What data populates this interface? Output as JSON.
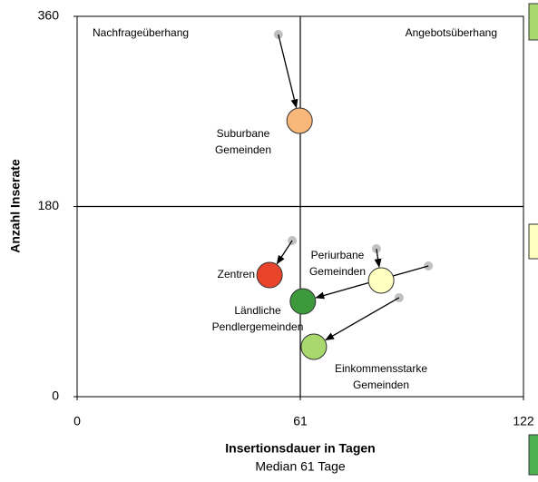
{
  "chart_data": {
    "type": "scatter",
    "quadrant_labels": [
      "Nachfrageüberhang",
      "Angebotsüberhang"
    ],
    "xlabel": "Insertionsdauer in Tagen",
    "subtitle": "Median 61 Tage",
    "ylabel": "Anzahl Inserate",
    "xlim": [
      0,
      122
    ],
    "ylim": [
      0,
      360
    ],
    "xticks": [
      0,
      61,
      122
    ],
    "yticks": [
      0,
      180,
      360
    ],
    "median": {
      "x": 61,
      "y": 180
    },
    "previous_color": "#c0c0c0",
    "points": [
      {
        "label": [
          "Suburbane",
          "Gemeinden"
        ],
        "color": "#f9b77a",
        "from": {
          "x": 55.0,
          "y": 342.8
        },
        "to": {
          "x": 60.8,
          "y": 261.2
        }
      },
      {
        "label": [
          "Zentren"
        ],
        "color": "#e8432b",
        "from": {
          "x": 58.8,
          "y": 147.8
        },
        "to": {
          "x": 52.6,
          "y": 115.1
        }
      },
      {
        "label": [
          "Ländliche",
          "Pendlergemeinden"
        ],
        "color": "#3c9a3c",
        "from": {
          "x": 96.0,
          "y": 123.7
        },
        "to": {
          "x": 61.7,
          "y": 90.2
        }
      },
      {
        "label": [
          "Periurbane",
          "Gemeinden"
        ],
        "color": "#ffffc2",
        "from": {
          "x": 81.8,
          "y": 140.0
        },
        "to": {
          "x": 83.1,
          "y": 110.0
        }
      },
      {
        "label": [
          "Einkommensstarke",
          "Gemeinden"
        ],
        "color": "#a8d86e",
        "from": {
          "x": 88.0,
          "y": 93.7
        },
        "to": {
          "x": 64.7,
          "y": 47.3
        }
      }
    ]
  }
}
